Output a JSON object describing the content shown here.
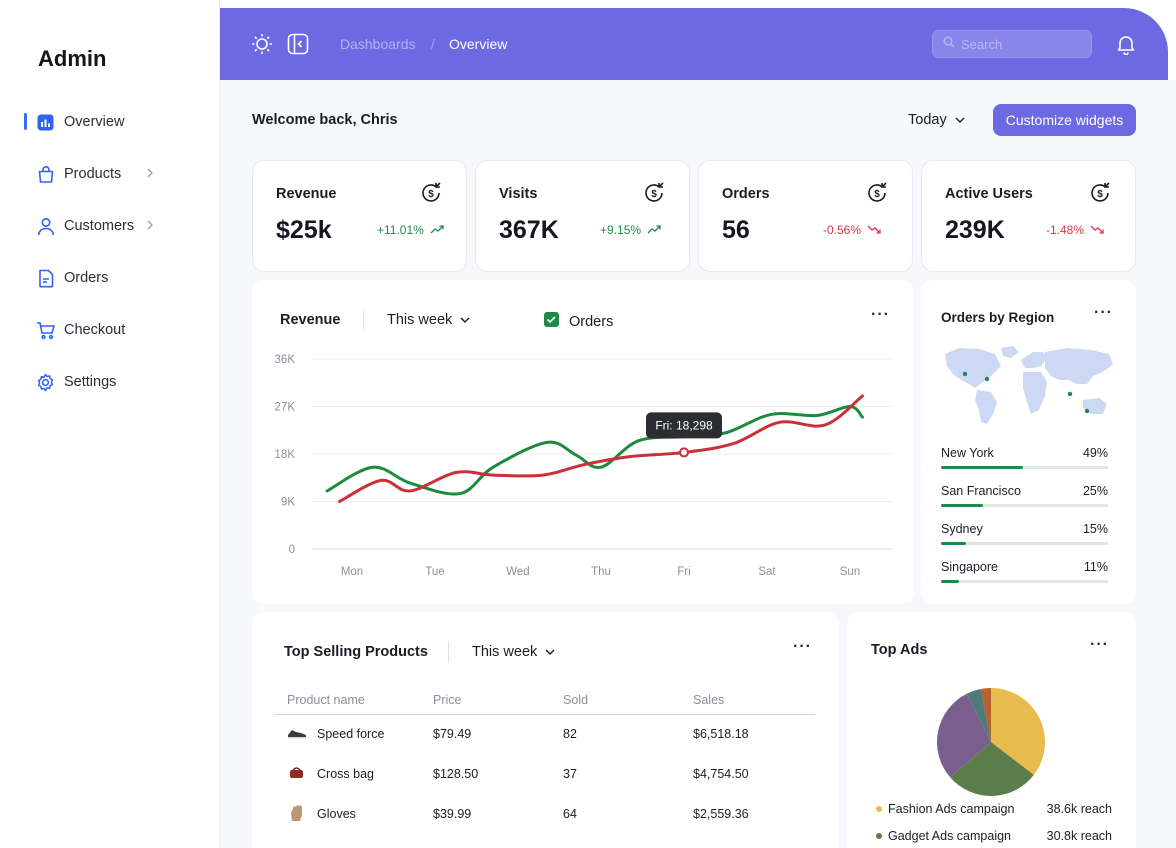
{
  "sidebar": {
    "brand": "Admin",
    "items": [
      {
        "label": "Overview",
        "icon": "bar-chart-icon",
        "active": true
      },
      {
        "label": "Products",
        "icon": "bag-icon",
        "chevron": true
      },
      {
        "label": "Customers",
        "icon": "user-icon",
        "chevron": true
      },
      {
        "label": "Orders",
        "icon": "document-icon"
      },
      {
        "label": "Checkout",
        "icon": "cart-icon"
      },
      {
        "label": "Settings",
        "icon": "gear-icon"
      }
    ]
  },
  "header": {
    "breadcrumb": [
      "Dashboards",
      "/",
      "Overview"
    ],
    "search_placeholder": "Search"
  },
  "main": {
    "welcome": "Welcome back, Chris",
    "period": "Today",
    "customize_label": "Customize widgets"
  },
  "stats": [
    {
      "title": "Revenue",
      "value": "$25k",
      "change": "+11.01%",
      "trend": "up"
    },
    {
      "title": "Visits",
      "value": "367K",
      "change": "+9.15%",
      "trend": "up"
    },
    {
      "title": "Orders",
      "value": "56",
      "change": "-0.56%",
      "trend": "down"
    },
    {
      "title": "Active Users",
      "value": "239K",
      "change": "-1.48%",
      "trend": "down"
    }
  ],
  "colors": {
    "accent": "#6c69e3",
    "up": "#1e8a4a",
    "down": "#d6394a",
    "series_green": "#1e8a3e",
    "series_red": "#c9303a"
  },
  "revenue_panel": {
    "title": "Revenue",
    "period": "This week",
    "checkbox_label": "Orders",
    "tooltip": "Fri: 18,298"
  },
  "chart_data": {
    "type": "line",
    "categories": [
      "Mon",
      "Tue",
      "Wed",
      "Thu",
      "Fri",
      "Sat",
      "Sun"
    ],
    "y_ticks": [
      "36K",
      "27K",
      "18K",
      "9K",
      "0"
    ],
    "ylim": [
      0,
      36000
    ],
    "grid": true,
    "series": [
      {
        "name": "Orders",
        "color": "green",
        "values": [
          [
            -0.3,
            11000
          ],
          [
            0.25,
            15500
          ],
          [
            0.7,
            12500
          ],
          [
            1.3,
            10500
          ],
          [
            1.7,
            15500
          ],
          [
            2.35,
            20200
          ],
          [
            2.7,
            17800
          ],
          [
            3.0,
            15500
          ],
          [
            3.45,
            20500
          ],
          [
            4.0,
            21300
          ],
          [
            4.5,
            22000
          ],
          [
            5.05,
            25500
          ],
          [
            5.6,
            25300
          ],
          [
            6.0,
            27000
          ],
          [
            6.15,
            25000
          ]
        ]
      },
      {
        "name": "",
        "color": "red",
        "values": [
          [
            -0.15,
            9000
          ],
          [
            0.35,
            13000
          ],
          [
            0.7,
            11000
          ],
          [
            1.25,
            14500
          ],
          [
            1.7,
            14000
          ],
          [
            2.3,
            14000
          ],
          [
            2.8,
            16000
          ],
          [
            3.35,
            17500
          ],
          [
            4.0,
            18298
          ],
          [
            4.6,
            20000
          ],
          [
            5.15,
            24000
          ],
          [
            5.7,
            23500
          ],
          [
            6.15,
            29000
          ]
        ]
      }
    ]
  },
  "region_panel": {
    "title": "Orders by Region",
    "regions": [
      {
        "name": "New York",
        "pct": "49%",
        "value": 0.49
      },
      {
        "name": "San Francisco",
        "pct": "25%",
        "value": 0.25
      },
      {
        "name": "Sydney",
        "pct": "15%",
        "value": 0.15
      },
      {
        "name": "Singapore",
        "pct": "11%",
        "value": 0.11
      }
    ]
  },
  "top_products": {
    "title": "Top Selling Products",
    "period": "This week",
    "columns": [
      "Product name",
      "Price",
      "Sold",
      "Sales"
    ],
    "rows": [
      {
        "name": "Speed force",
        "price": "$79.49",
        "sold": "82",
        "sales": "$6,518.18",
        "icon": "shoe-icon"
      },
      {
        "name": "Cross bag",
        "price": "$128.50",
        "sold": "37",
        "sales": "$4,754.50",
        "icon": "bag-icon"
      },
      {
        "name": "Gloves",
        "price": "$39.99",
        "sold": "64",
        "sales": "$2,559.36",
        "icon": "glove-icon"
      }
    ]
  },
  "top_ads": {
    "title": "Top Ads",
    "pie": [
      {
        "name": "Fashion Ads campaign",
        "reach": "38.6k reach",
        "value": 38.6,
        "color": "#e8bb4f"
      },
      {
        "name": "Gadget Ads campaign",
        "reach": "30.8k reach",
        "value": 30.8,
        "color": "#5a7d49"
      },
      {
        "name": "",
        "value": 31.5,
        "color": "#7a5e8f"
      },
      {
        "name": "",
        "value": 4.8,
        "color": "#4f7a7a"
      },
      {
        "name": "",
        "value": 3.3,
        "color": "#b8612a"
      }
    ]
  }
}
